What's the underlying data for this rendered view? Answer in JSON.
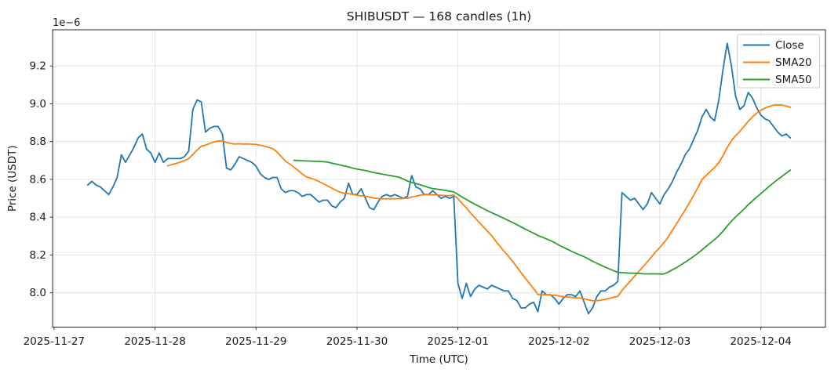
{
  "chart_data": {
    "type": "line",
    "title": "SHIBUSDT — 168 candles (1h)",
    "xlabel": "Time (UTC)",
    "ylabel": "Price (USDT)",
    "y_offset_label": "1e−6",
    "candle_interval": "1h",
    "candle_count": 168,
    "grid": true,
    "legend_position": "upper right",
    "x_unit": "hours since 2025-11-27 00:00 UTC",
    "x_start_hour": 8,
    "x_step_hours": 1,
    "xlim": [
      -0.35,
      183.35
    ],
    "ylim": [
      7.8185,
      9.3915
    ],
    "x_ticks": [
      {
        "hour": 0,
        "label": "2025-11-27"
      },
      {
        "hour": 24,
        "label": "2025-11-28"
      },
      {
        "hour": 48,
        "label": "2025-11-29"
      },
      {
        "hour": 72,
        "label": "2025-11-30"
      },
      {
        "hour": 96,
        "label": "2025-12-01"
      },
      {
        "hour": 120,
        "label": "2025-12-02"
      },
      {
        "hour": 144,
        "label": "2025-12-03"
      },
      {
        "hour": 168,
        "label": "2025-12-04"
      }
    ],
    "y_ticks": [
      {
        "value": 8.0,
        "label": "8.0"
      },
      {
        "value": 8.2,
        "label": "8.2"
      },
      {
        "value": 8.4,
        "label": "8.4"
      },
      {
        "value": 8.6,
        "label": "8.6"
      },
      {
        "value": 8.8,
        "label": "8.8"
      },
      {
        "value": 9.0,
        "label": "9.0"
      },
      {
        "value": 9.2,
        "label": "9.2"
      }
    ],
    "colors": {
      "close": "#1f77b4",
      "sma20": "#ff7f0e",
      "sma50": "#2ca02c",
      "grid": "#e0e0e0",
      "frame": "#262626",
      "legend_border": "#cccccc"
    },
    "series": [
      {
        "name": "Close",
        "color": "#1f77b4",
        "kind": "raw",
        "values": [
          8.57,
          8.59,
          8.57,
          8.56,
          8.54,
          8.52,
          8.56,
          8.61,
          8.73,
          8.69,
          8.73,
          8.77,
          8.82,
          8.84,
          8.76,
          8.74,
          8.69,
          8.74,
          8.69,
          8.71,
          8.71,
          8.71,
          8.71,
          8.72,
          8.75,
          8.97,
          9.02,
          9.01,
          8.85,
          8.87,
          8.88,
          8.88,
          8.84,
          8.66,
          8.65,
          8.68,
          8.72,
          8.71,
          8.7,
          8.69,
          8.67,
          8.63,
          8.61,
          8.6,
          8.61,
          8.61,
          8.55,
          8.53,
          8.54,
          8.54,
          8.53,
          8.51,
          8.52,
          8.52,
          8.5,
          8.48,
          8.49,
          8.49,
          8.46,
          8.45,
          8.48,
          8.5,
          8.58,
          8.52,
          8.52,
          8.55,
          8.5,
          8.45,
          8.44,
          8.48,
          8.51,
          8.52,
          8.51,
          8.52,
          8.51,
          8.5,
          8.51,
          8.62,
          8.56,
          8.55,
          8.52,
          8.52,
          8.54,
          8.52,
          8.5,
          8.51,
          8.5,
          8.51,
          8.05,
          7.97,
          8.05,
          7.98,
          8.02,
          8.04,
          8.03,
          8.02,
          8.04,
          8.03,
          8.02,
          8.01,
          8.01,
          7.97,
          7.96,
          7.92,
          7.92,
          7.94,
          7.95,
          7.9,
          8.01,
          7.99,
          7.99,
          7.97,
          7.94,
          7.97,
          7.99,
          7.99,
          7.98,
          8.01,
          7.95,
          7.89,
          7.92,
          7.98,
          8.01,
          8.01,
          8.03,
          8.04,
          8.06,
          8.53,
          8.51,
          8.49,
          8.5,
          8.47,
          8.44,
          8.47,
          8.53,
          8.5,
          8.47,
          8.52,
          8.55,
          8.59,
          8.64,
          8.68,
          8.73,
          8.76,
          8.81,
          8.86,
          8.93,
          8.97,
          8.93,
          8.91,
          9.02,
          9.18,
          9.32,
          9.2,
          9.04,
          8.97,
          8.99,
          9.06,
          9.03,
          8.98,
          8.94,
          8.92,
          8.91,
          8.88,
          8.85,
          8.83,
          8.84,
          8.82
        ]
      },
      {
        "name": "SMA20",
        "color": "#ff7f0e",
        "kind": "sma",
        "window": 20,
        "source": "Close"
      },
      {
        "name": "SMA50",
        "color": "#2ca02c",
        "kind": "sma",
        "window": 50,
        "source": "Close"
      }
    ]
  }
}
